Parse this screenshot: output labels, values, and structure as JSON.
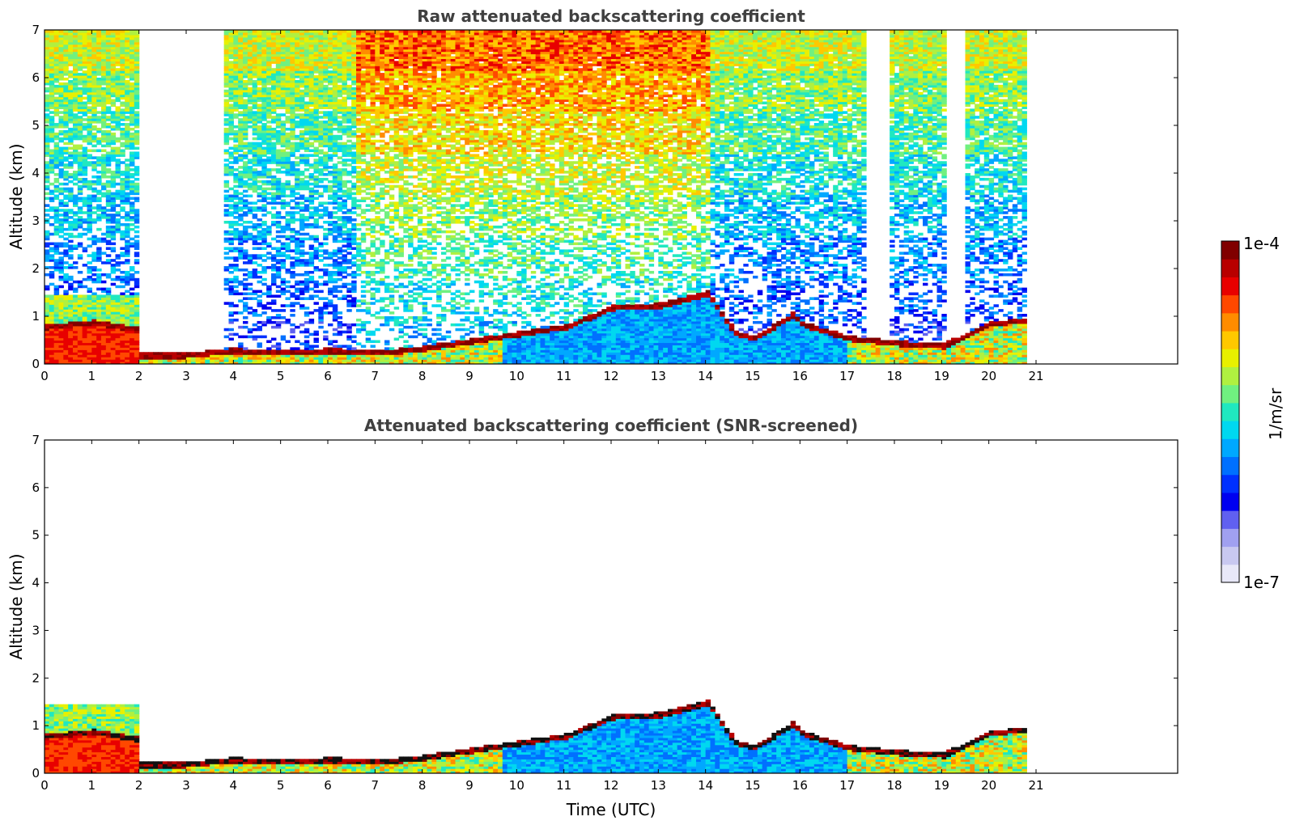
{
  "chart_data": [
    {
      "type": "heatmap",
      "title": "Raw attenuated backscattering coefficient",
      "xlabel": "",
      "ylabel": "Altitude (km)",
      "xlim": [
        0,
        24
      ],
      "ylim": [
        0,
        7
      ],
      "xticks": [
        "0",
        "1",
        "2",
        "3",
        "4",
        "5",
        "6",
        "7",
        "8",
        "9",
        "10",
        "11",
        "12",
        "13",
        "14",
        "15",
        "16",
        "17",
        "18",
        "19",
        "20",
        "21"
      ],
      "yticks": [
        "0",
        "1",
        "2",
        "3",
        "4",
        "5",
        "6",
        "7"
      ],
      "data_end_hour": 20.8,
      "features": {
        "cloud_base_km": [
          [
            0,
            0.75
          ],
          [
            1,
            0.85
          ],
          [
            1.9,
            0.7
          ],
          [
            2,
            0.15
          ],
          [
            3,
            0.15
          ],
          [
            4,
            0.25
          ],
          [
            5,
            0.2
          ],
          [
            6,
            0.25
          ],
          [
            7,
            0.2
          ],
          [
            8,
            0.3
          ],
          [
            9,
            0.45
          ],
          [
            10,
            0.6
          ],
          [
            11,
            0.75
          ],
          [
            12,
            1.15
          ],
          [
            13,
            1.2
          ],
          [
            14,
            1.45
          ],
          [
            14.6,
            0.6
          ],
          [
            15,
            0.5
          ],
          [
            15.8,
            1.0
          ],
          [
            16,
            0.8
          ],
          [
            17,
            0.5
          ],
          [
            18,
            0.4
          ],
          [
            19,
            0.35
          ],
          [
            20,
            0.8
          ],
          [
            20.8,
            0.9
          ]
        ],
        "clear_columns_hours": [
          [
            2.0,
            3.8
          ],
          [
            17.3,
            17.8
          ],
          [
            19.1,
            19.5
          ]
        ],
        "noise_signal_level": "high above 4 km, peaking 7-13 UTC"
      }
    },
    {
      "type": "heatmap",
      "title": "Attenuated backscattering coefficient (SNR-screened)",
      "xlabel": "Time (UTC)",
      "ylabel": "Altitude (km)",
      "xlim": [
        0,
        24
      ],
      "ylim": [
        0,
        7
      ],
      "xticks": [
        "0",
        "1",
        "2",
        "3",
        "4",
        "5",
        "6",
        "7",
        "8",
        "9",
        "10",
        "11",
        "12",
        "13",
        "14",
        "15",
        "16",
        "17",
        "18",
        "19",
        "20",
        "21"
      ],
      "yticks": [
        "0",
        "1",
        "2",
        "3",
        "4",
        "5",
        "6",
        "7"
      ],
      "data_end_hour": 20.8,
      "features": {
        "cloud_base_km": [
          [
            0,
            0.75
          ],
          [
            1,
            0.85
          ],
          [
            1.9,
            0.7
          ],
          [
            2,
            0.15
          ],
          [
            3,
            0.15
          ],
          [
            4,
            0.25
          ],
          [
            5,
            0.2
          ],
          [
            6,
            0.25
          ],
          [
            7,
            0.2
          ],
          [
            8,
            0.3
          ],
          [
            9,
            0.45
          ],
          [
            10,
            0.6
          ],
          [
            11,
            0.75
          ],
          [
            12,
            1.15
          ],
          [
            13,
            1.2
          ],
          [
            14,
            1.45
          ],
          [
            14.6,
            0.6
          ],
          [
            15,
            0.5
          ],
          [
            15.8,
            1.0
          ],
          [
            16,
            0.8
          ],
          [
            17,
            0.5
          ],
          [
            18,
            0.4
          ],
          [
            19,
            0.35
          ],
          [
            20,
            0.8
          ],
          [
            20.8,
            0.9
          ]
        ],
        "screened_above_km": 2.1
      }
    }
  ],
  "colorbar": {
    "label": "1/m/sr",
    "max_label": "1e-4",
    "min_label": "1e-7",
    "colors": [
      "#e8e8f8",
      "#c8c8f0",
      "#a0a0f0",
      "#6060f0",
      "#0000f0",
      "#0030ff",
      "#0070ff",
      "#00a8ff",
      "#00d8f0",
      "#20e8c0",
      "#70f080",
      "#b0f040",
      "#e8f000",
      "#ffc800",
      "#ff8c00",
      "#ff4800",
      "#e80000",
      "#b80000",
      "#800000"
    ]
  }
}
